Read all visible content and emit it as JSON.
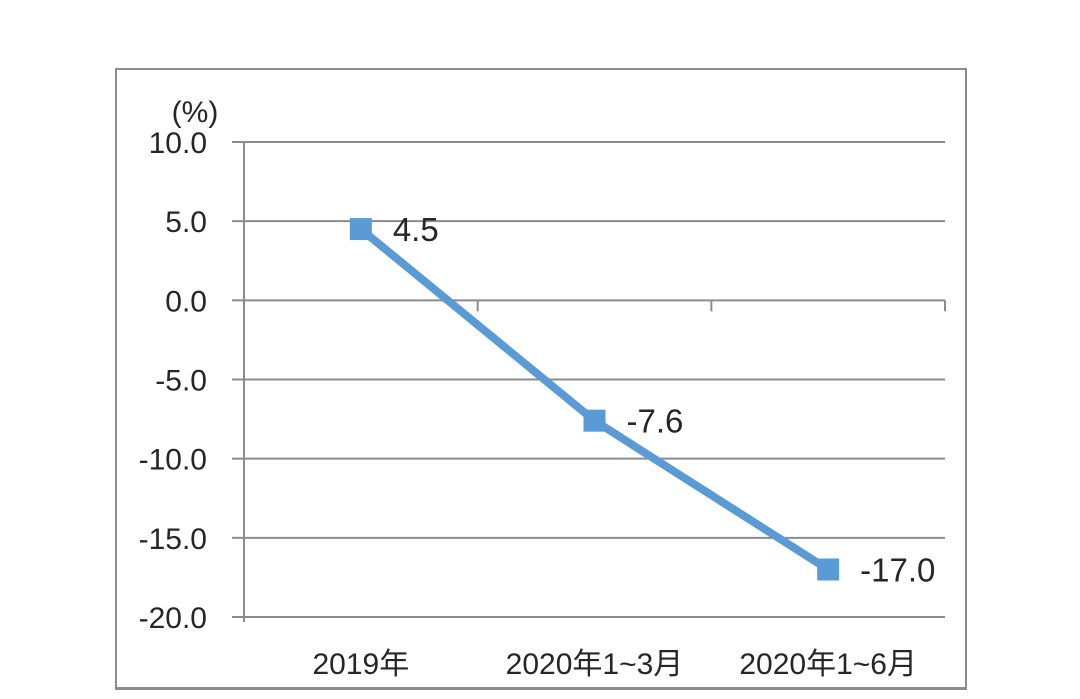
{
  "chart_data": {
    "type": "line",
    "title": "",
    "unit_label": "(%)",
    "categories": [
      "2019年",
      "2020年1~3月",
      "2020年1~6月"
    ],
    "series": [
      {
        "values": [
          4.5,
          -7.6,
          -17.0
        ],
        "labels": [
          "4.5",
          "-7.6",
          "-17.0"
        ]
      }
    ],
    "y_ticks": [
      "10.0",
      "5.0",
      "0.0",
      "-5.0",
      "-10.0",
      "-15.0",
      "-20.0"
    ],
    "ylim": [
      -20,
      10
    ],
    "y_step": 5,
    "grid": true,
    "legend": "none",
    "marker_shape": "square",
    "colors": {
      "line": "#5B9BD5",
      "marker": "#5B9BD5",
      "grid": "#8C8C8C",
      "axis": "#8C8C8C",
      "text": "#262626",
      "frame_border": "#8C8C8C",
      "background": "#FFFFFF"
    }
  }
}
